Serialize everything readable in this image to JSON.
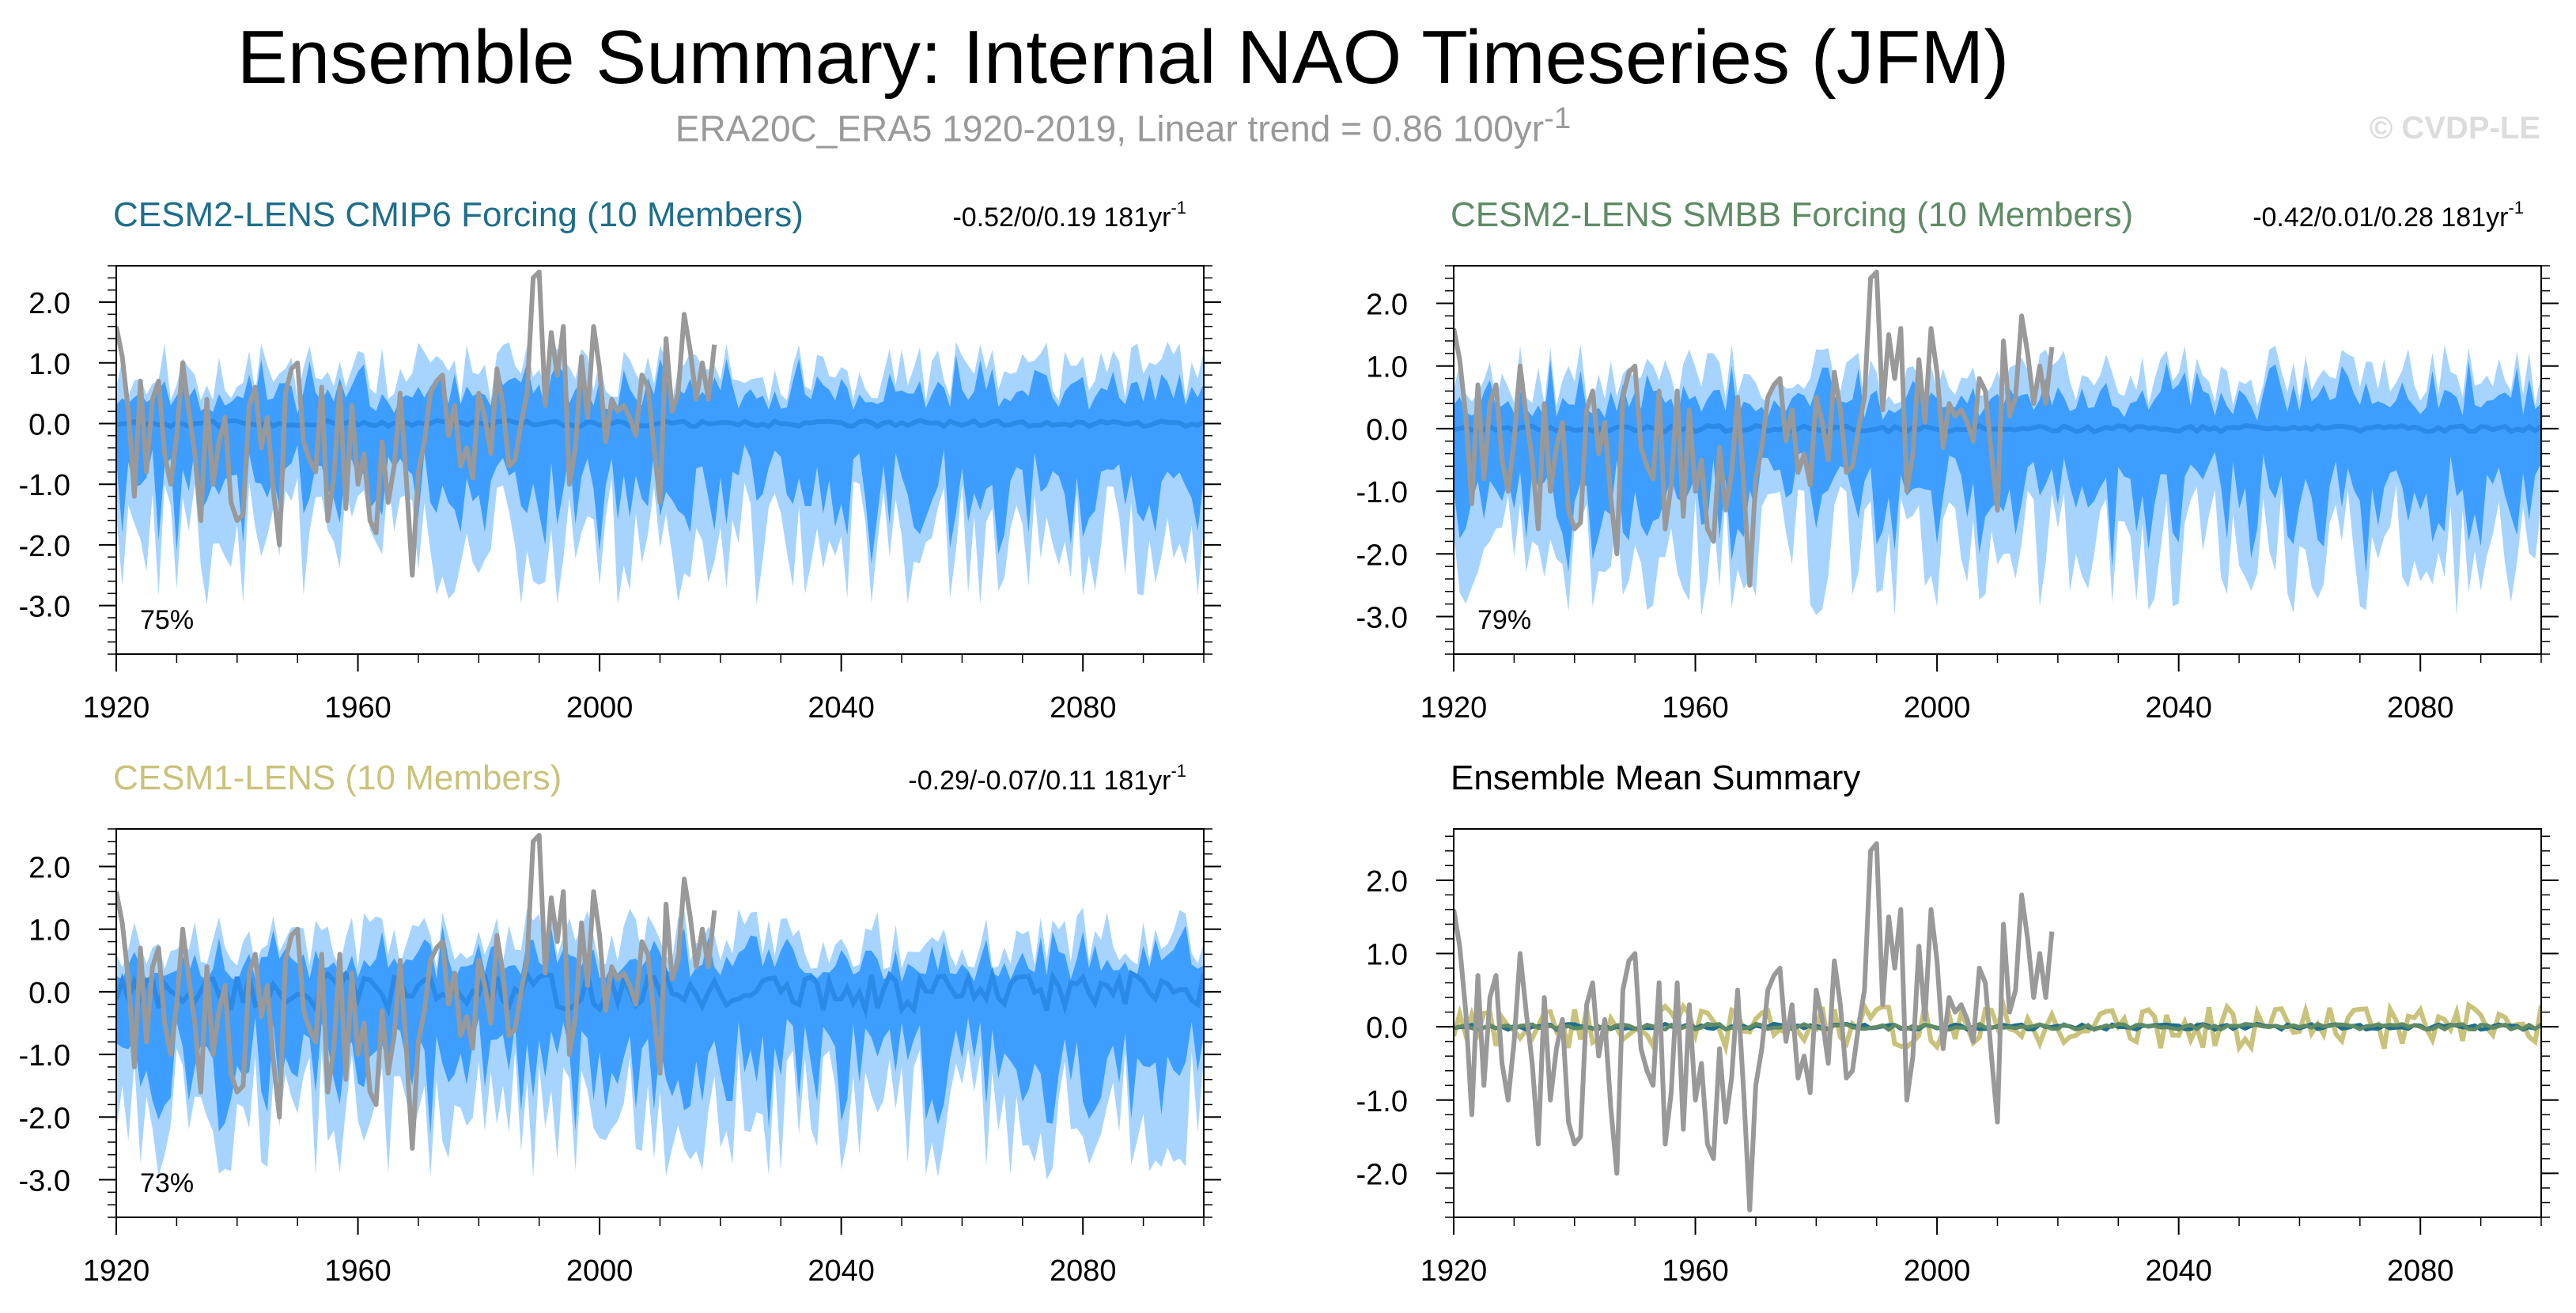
{
  "figure": {
    "title": "Ensemble Summary: Internal NAO Timeseries (JFM)",
    "subtitle": "ERA20C_ERA5 1920-2019, Linear trend = 0.86 100yr",
    "subtitle_sup": "-1",
    "copyright": "© CVDP-LE"
  },
  "colors": {
    "observed": "#999999",
    "spread_outer": "#a6d4ff",
    "spread_inner": "#3d9eff",
    "ensemble_mean_line": "#2b8ae8",
    "cesm2_cmip6_title": "#1e6e8c",
    "cesm2_smbb_title": "#5e8b65",
    "cesm1_title": "#c9c27a",
    "summary_cesm2_cmip6": "#1e6e8c",
    "summary_cesm2_smbb": "#5e8b65",
    "summary_cesm1": "#c9c27a"
  },
  "chart_data": [
    {
      "type": "area",
      "title": "CESM2-LENS CMIP6 Forcing (10 Members)",
      "title_color_key": "cesm2_cmip6_title",
      "trend_text": "-0.52/0/0.19 181yr",
      "trend_sup": "-1",
      "percent": "75%",
      "xlim": [
        1920,
        2100
      ],
      "ylim": [
        -3.8,
        2.6
      ],
      "yticks": [
        2.0,
        1.0,
        0.0,
        -1.0,
        -2.0,
        -3.0
      ],
      "ytick_labels": [
        "2.0",
        "1.0",
        "0.0",
        "-1.0",
        "-2.0",
        "-3.0"
      ],
      "xticks": [
        1920,
        1960,
        2000,
        2040,
        2080
      ],
      "xtick_labels": [
        "1920",
        "1960",
        "2000",
        "2040",
        "2080"
      ],
      "spread_scale": 1.0,
      "mean_amplitude": 0.05,
      "seed": 11
    },
    {
      "type": "area",
      "title": "CESM2-LENS SMBB Forcing (10 Members)",
      "title_color_key": "cesm2_smbb_title",
      "trend_text": "-0.42/0.01/0.28 181yr",
      "trend_sup": "-1",
      "percent": "79%",
      "xlim": [
        1920,
        2100
      ],
      "ylim": [
        -3.6,
        2.6
      ],
      "yticks": [
        2.0,
        1.0,
        0.0,
        -1.0,
        -2.0,
        -3.0
      ],
      "ytick_labels": [
        "2.0",
        "1.0",
        "0.0",
        "-1.0",
        "-2.0",
        "-3.0"
      ],
      "xticks": [
        1920,
        1960,
        2000,
        2040,
        2080
      ],
      "xtick_labels": [
        "1920",
        "1960",
        "2000",
        "2040",
        "2080"
      ],
      "spread_scale": 1.0,
      "mean_amplitude": 0.05,
      "seed": 23
    },
    {
      "type": "area",
      "title": "CESM1-LENS (10 Members)",
      "title_color_key": "cesm1_title",
      "trend_text": "-0.29/-0.07/0.11 181yr",
      "trend_sup": "-1",
      "percent": "73%",
      "xlim": [
        1920,
        2100
      ],
      "ylim": [
        -3.6,
        2.6
      ],
      "yticks": [
        2.0,
        1.0,
        0.0,
        -1.0,
        -2.0,
        -3.0
      ],
      "ytick_labels": [
        "2.0",
        "1.0",
        "0.0",
        "-1.0",
        "-2.0",
        "-3.0"
      ],
      "xticks": [
        1920,
        1960,
        2000,
        2040,
        2080
      ],
      "xtick_labels": [
        "1920",
        "1960",
        "2000",
        "2040",
        "2080"
      ],
      "spread_scale": 1.0,
      "mean_amplitude": 0.3,
      "seed": 37
    },
    {
      "type": "line",
      "title": "Ensemble Mean Summary",
      "xlim": [
        1920,
        2100
      ],
      "ylim": [
        -2.6,
        2.7
      ],
      "yticks": [
        2.0,
        1.0,
        0.0,
        -1.0,
        -2.0
      ],
      "ytick_labels": [
        "2.0",
        "1.0",
        "0.0",
        "-1.0",
        "-2.0"
      ],
      "xticks": [
        1920,
        1960,
        2000,
        2040,
        2080
      ],
      "xtick_labels": [
        "1920",
        "1960",
        "2000",
        "2040",
        "2080"
      ],
      "summary_series": [
        {
          "color_key": "summary_cesm1",
          "amplitude": 0.3,
          "seed": 37
        },
        {
          "color_key": "summary_cesm2_cmip6",
          "amplitude": 0.04,
          "seed": 11
        },
        {
          "color_key": "summary_cesm2_smbb",
          "amplitude": 0.04,
          "seed": 23
        }
      ]
    }
  ],
  "observed": {
    "years": [
      1920,
      1921,
      1922,
      1923,
      1924,
      1925,
      1926,
      1927,
      1928,
      1929,
      1930,
      1931,
      1932,
      1933,
      1934,
      1935,
      1936,
      1937,
      1938,
      1939,
      1940,
      1941,
      1942,
      1943,
      1944,
      1945,
      1946,
      1947,
      1948,
      1949,
      1950,
      1951,
      1952,
      1953,
      1954,
      1955,
      1956,
      1957,
      1958,
      1959,
      1960,
      1961,
      1962,
      1963,
      1964,
      1965,
      1966,
      1967,
      1968,
      1969,
      1970,
      1971,
      1972,
      1973,
      1974,
      1975,
      1976,
      1977,
      1978,
      1979,
      1980,
      1981,
      1982,
      1983,
      1984,
      1985,
      1986,
      1987,
      1988,
      1989,
      1990,
      1991,
      1992,
      1993,
      1994,
      1995,
      1996,
      1997,
      1998,
      1999,
      2000,
      2001,
      2002,
      2003,
      2004,
      2005,
      2006,
      2007,
      2008,
      2009,
      2010,
      2011,
      2012,
      2013,
      2014,
      2015,
      2016,
      2017,
      2018,
      2019
    ],
    "values": [
      1.6,
      1.1,
      0.2,
      -1.2,
      0.7,
      -0.8,
      0.4,
      0.7,
      -0.5,
      -1.0,
      -0.2,
      1.0,
      0.2,
      -0.5,
      -1.6,
      0.4,
      -1.0,
      -0.3,
      0.1,
      -1.3,
      -1.6,
      -1.5,
      0.3,
      0.6,
      -0.4,
      0.1,
      -1.1,
      -2.0,
      0.5,
      0.9,
      1.0,
      -0.3,
      -0.6,
      -0.8,
      0.6,
      -1.6,
      -0.9,
      0.6,
      -1.4,
      0.3,
      -1.0,
      -0.5,
      -1.6,
      -1.8,
      -0.3,
      -1.3,
      -0.7,
      0.5,
      -0.9,
      -2.5,
      -0.8,
      -0.3,
      0.5,
      0.7,
      0.8,
      -0.2,
      0.3,
      -0.7,
      -0.4,
      -0.9,
      0.5,
      0.1,
      -0.5,
      0.9,
      0.3,
      -0.7,
      -0.6,
      0.0,
      0.5,
      2.4,
      2.5,
      0.3,
      1.5,
      0.8,
      1.6,
      -1.0,
      -0.4,
      1.1,
      0.1,
      1.6,
      0.9,
      -0.3,
      0.4,
      0.2,
      0.3,
      0.1,
      -0.2,
      0.8,
      0.6,
      -0.4,
      -1.3,
      1.4,
      0.2,
      0.5,
      1.8,
      1.2,
      0.4,
      1.0,
      0.4,
      1.3
    ]
  }
}
